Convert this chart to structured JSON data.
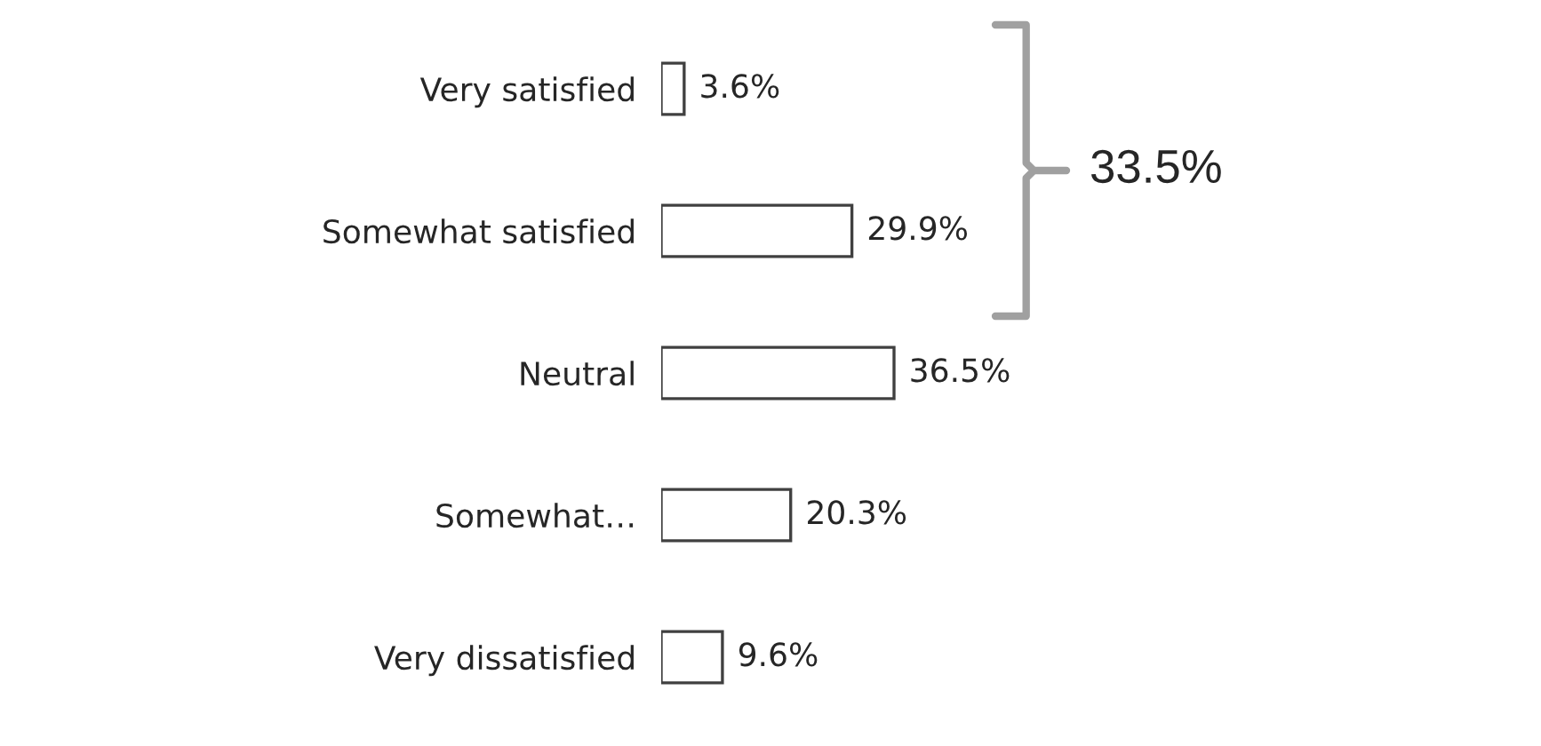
{
  "chart_data": {
    "type": "bar",
    "orientation": "horizontal",
    "categories": [
      "Very satisfied",
      "Somewhat satisfied",
      "Neutral",
      "Somewhat…",
      "Very dissatisfied"
    ],
    "values": [
      3.6,
      29.9,
      36.5,
      20.3,
      9.6
    ],
    "value_labels": [
      "3.6%",
      "29.9%",
      "36.5%",
      "20.3%",
      "9.6%"
    ],
    "color": "#ffffff",
    "tick_labels": "y",
    "grid": false,
    "annotations": [
      "33.5%"
    ]
  }
}
